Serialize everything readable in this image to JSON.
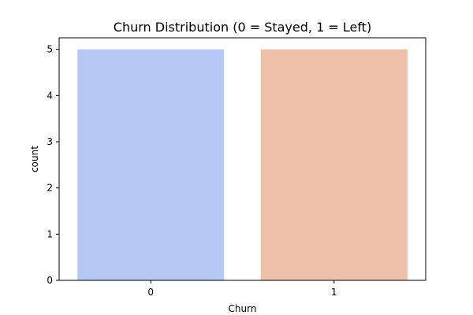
{
  "chart_data": {
    "type": "bar",
    "title": "Churn Distribution (0 = Stayed, 1 = Left)",
    "xlabel": "Churn",
    "ylabel": "count",
    "categories": [
      "0",
      "1"
    ],
    "values": [
      5,
      5
    ],
    "colors": [
      "#b6c9f4",
      "#edbea8"
    ],
    "ylim": [
      0,
      5.25
    ],
    "yticks": [
      "0",
      "1",
      "2",
      "3",
      "4",
      "5"
    ],
    "grid": false,
    "legend": "none"
  }
}
